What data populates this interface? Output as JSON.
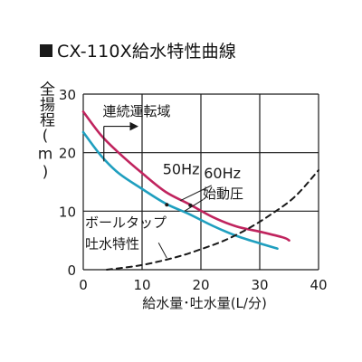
{
  "title": "CX-110X給水特性曲線",
  "colors": {
    "curve_50hz": "#1f9fbf",
    "curve_60hz": "#c0245e",
    "ballcock_curve": "#1a1a1a",
    "grid": "#1a1a1a"
  },
  "chart_data": {
    "type": "line",
    "title": "CX-110X給水特性曲線",
    "xlabel": "給水量･吐水量(L/分)",
    "ylabel": "全揚程(m)",
    "xlim": [
      0,
      40
    ],
    "ylim": [
      0,
      30
    ],
    "x_ticks": [
      "0",
      "10",
      "20",
      "30",
      "40"
    ],
    "y_ticks": [
      "0",
      "10",
      "20",
      "30"
    ],
    "grid": true,
    "series": [
      {
        "name": "50Hz",
        "style": "solid",
        "color": "#1f9fbf",
        "x": [
          0,
          3,
          6,
          10,
          14,
          18,
          22,
          26,
          30,
          33
        ],
        "y": [
          23.5,
          19.5,
          16.5,
          13.8,
          11.3,
          9.5,
          7.5,
          5.8,
          4.5,
          3.6
        ]
      },
      {
        "name": "60Hz",
        "style": "solid",
        "color": "#c0245e",
        "x": [
          0,
          3,
          6,
          10,
          14,
          18,
          22,
          26,
          30,
          34,
          35
        ],
        "y": [
          27,
          23,
          20,
          16.5,
          13.3,
          11.2,
          9.0,
          7.4,
          6.5,
          5.5,
          5.0
        ]
      },
      {
        "name": "ボールタップ吐水特性",
        "style": "dashed",
        "color": "#1a1a1a",
        "x": [
          4,
          10,
          16,
          20,
          24,
          28,
          32,
          36,
          40
        ],
        "y": [
          0,
          0.8,
          2.2,
          3.5,
          5.0,
          7.0,
          9.5,
          12.5,
          17
        ]
      }
    ],
    "annotations": [
      {
        "text": "連続運転域"
      },
      {
        "text": "50Hz"
      },
      {
        "text": "60Hz"
      },
      {
        "text": "始動圧"
      },
      {
        "text": "ボールタップ"
      },
      {
        "text": "吐水特性"
      }
    ]
  }
}
